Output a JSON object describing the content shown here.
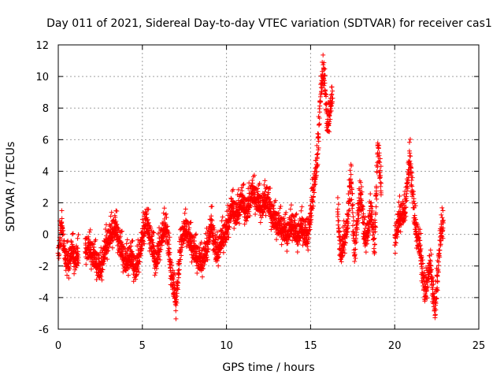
{
  "chart_data": {
    "type": "scatter",
    "title": "Day 011 of 2021, Sidereal Day-to-day VTEC variation (SDTVAR) for receiver cas1",
    "xlabel": "GPS time / hours",
    "ylabel": "SDTVAR / TECUs",
    "xlim": [
      0,
      25
    ],
    "ylim": [
      -6,
      12
    ],
    "xticks": [
      0,
      5,
      10,
      15,
      20,
      25
    ],
    "yticks": [
      -6,
      -4,
      -2,
      0,
      2,
      4,
      6,
      8,
      10,
      12
    ],
    "grid": true,
    "marker": "+",
    "series": [
      {
        "name": "SDTVAR",
        "color": "#ff0000",
        "segments": [
          {
            "x": [
              0.0,
              0.2,
              0.4,
              0.6,
              0.8,
              1.0,
              1.2
            ],
            "y": [
              -1.0,
              0.5,
              -1.5,
              -2.0,
              -1.2,
              -1.8,
              -1.5
            ]
          },
          {
            "x": [
              1.6,
              1.9,
              2.2,
              2.5,
              2.8,
              3.1,
              3.4
            ],
            "y": [
              -1.0,
              -1.2,
              -1.8,
              -2.5,
              -1.0,
              -0.2,
              0.3
            ]
          },
          {
            "x": [
              3.4,
              3.7,
              4.0,
              4.3,
              4.6,
              4.9,
              5.2,
              5.5,
              5.8
            ],
            "y": [
              0.3,
              -1.0,
              -2.0,
              -1.5,
              -2.5,
              -1.0,
              0.8,
              -0.5,
              -2.0
            ]
          },
          {
            "x": [
              5.8,
              6.1,
              6.4,
              6.7,
              7.0,
              7.3,
              7.6,
              7.9
            ],
            "y": [
              -2.0,
              -0.5,
              0.5,
              -2.5,
              -4.5,
              -0.5,
              0.2,
              -0.8
            ]
          },
          {
            "x": [
              7.9,
              8.2,
              8.5,
              8.8,
              9.1,
              9.4,
              9.7,
              10.0
            ],
            "y": [
              -0.8,
              -1.5,
              -2.0,
              -1.2,
              0.5,
              -1.5,
              -0.5,
              0.0
            ]
          },
          {
            "x": [
              10.0,
              10.3,
              10.6,
              10.9,
              11.2,
              11.5,
              11.8,
              12.1,
              12.4,
              12.7,
              13.0
            ],
            "y": [
              0.0,
              1.5,
              1.0,
              2.0,
              1.2,
              2.5,
              2.0,
              1.5,
              2.2,
              1.0,
              0.5
            ]
          },
          {
            "x": [
              13.0,
              13.3,
              13.6,
              13.9,
              14.2,
              14.5,
              14.8
            ],
            "y": [
              0.5,
              0.2,
              -0.2,
              0.5,
              -0.3,
              0.3,
              -0.5
            ]
          },
          {
            "x": [
              14.8,
              15.0,
              15.2,
              15.4,
              15.6,
              15.8,
              16.0,
              16.3
            ],
            "y": [
              -0.5,
              1.0,
              3.0,
              4.5,
              9.0,
              10.3,
              6.5,
              8.8
            ]
          },
          {
            "x": [
              16.6,
              16.8,
              17.0,
              17.2,
              17.4,
              17.6,
              17.8,
              18.0,
              18.2,
              18.4
            ],
            "y": [
              1.2,
              -1.5,
              -0.5,
              0.5,
              3.8,
              -1.5,
              1.0,
              2.5,
              -0.5,
              0.0
            ]
          },
          {
            "x": [
              18.4,
              18.6,
              18.8,
              19.0,
              19.2
            ],
            "y": [
              0.0,
              1.5,
              -1.0,
              5.5,
              2.5
            ]
          },
          {
            "x": [
              20.0,
              20.3,
              20.6,
              20.9,
              21.2,
              21.5
            ],
            "y": [
              -0.5,
              1.0,
              1.2,
              4.8,
              0.5,
              -1.0
            ]
          },
          {
            "x": [
              21.5,
              21.8,
              22.1,
              22.4,
              22.7,
              22.9
            ],
            "y": [
              -1.0,
              -4.0,
              -2.0,
              -5.0,
              -0.5,
              0.8
            ]
          }
        ]
      }
    ]
  }
}
